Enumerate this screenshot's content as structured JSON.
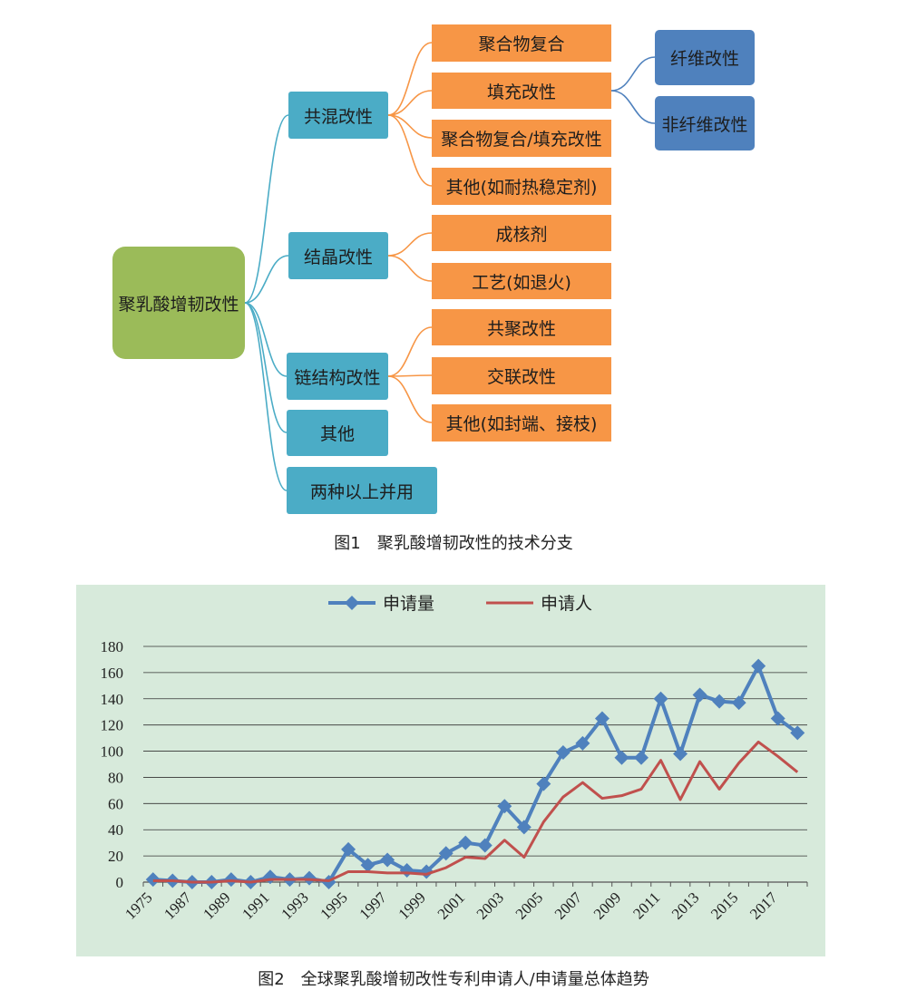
{
  "figure1": {
    "root": "聚乳酸增韧改性",
    "level1": [
      "共混改性",
      "结晶改性",
      "链结构改性",
      "其他",
      "两种以上并用"
    ],
    "blend_children": [
      "聚合物复合",
      "填充改性",
      "聚合物复合/填充改性",
      "其他(如耐热稳定剂)"
    ],
    "crystal_children": [
      "成核剂",
      "工艺(如退火)"
    ],
    "chain_children": [
      "共聚改性",
      "交联改性",
      "其他(如封端、接枝)"
    ],
    "filler_children": [
      "纤维改性",
      "非纤维改性"
    ],
    "caption": "图1　聚乳酸增韧改性的技术分支",
    "colors": {
      "root": "#9bbb59",
      "level1": "#4bacc6",
      "level2": "#f79646",
      "level3": "#4f81bd",
      "connector": "#4bacc6",
      "connector_orange": "#f79646",
      "connector_blue": "#4f81bd"
    }
  },
  "figure2": {
    "caption": "图2　全球聚乳酸增韧改性专利申请人/申请量总体趋势"
  },
  "chart_data": {
    "type": "line",
    "ylim": [
      0,
      180
    ],
    "y_ticks": [
      0,
      20,
      40,
      60,
      80,
      100,
      120,
      140,
      160,
      180
    ],
    "x": [
      1975,
      1986,
      1987,
      1988,
      1989,
      1990,
      1991,
      1992,
      1993,
      1994,
      1995,
      1996,
      1997,
      1998,
      1999,
      2000,
      2001,
      2002,
      2003,
      2004,
      2005,
      2006,
      2007,
      2008,
      2009,
      2010,
      2011,
      2012,
      2013,
      2014,
      2015,
      2016,
      2017,
      2018
    ],
    "x_tick_labels": [
      "1975",
      "1987",
      "1989",
      "1991",
      "1993",
      "1995",
      "1997",
      "1999",
      "2001",
      "2003",
      "2005",
      "2007",
      "2009",
      "2011",
      "2013",
      "2015",
      "2017"
    ],
    "legend_position": "top",
    "grid": true,
    "series": [
      {
        "name": "申请量",
        "color": "#4f81bd",
        "marker": "diamond",
        "values": [
          2,
          1,
          0,
          0,
          2,
          0,
          4,
          2,
          3,
          0,
          25,
          13,
          17,
          9,
          8,
          22,
          30,
          28,
          58,
          42,
          75,
          99,
          106,
          125,
          95,
          95,
          140,
          98,
          143,
          138,
          137,
          165,
          125,
          114
        ]
      },
      {
        "name": "申请人",
        "color": "#c0504d",
        "marker": "none",
        "values": [
          1,
          1,
          0,
          0,
          1,
          0,
          2,
          2,
          2,
          1,
          8,
          8,
          7,
          7,
          6,
          11,
          19,
          18,
          32,
          19,
          46,
          65,
          76,
          64,
          66,
          71,
          93,
          63,
          92,
          71,
          91,
          107,
          96,
          84
        ]
      }
    ]
  }
}
